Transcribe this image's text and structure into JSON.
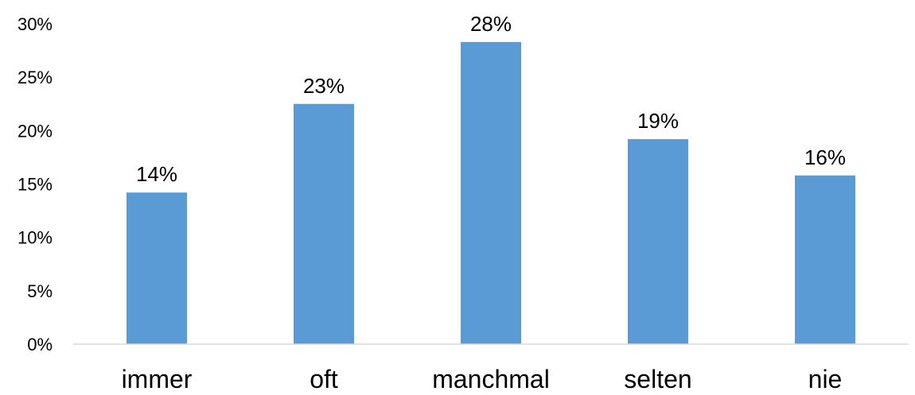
{
  "chart_data": {
    "type": "bar",
    "categories": [
      "immer",
      "oft",
      "manchmal",
      "selten",
      "nie"
    ],
    "values": [
      14.2,
      22.5,
      28.3,
      19.2,
      15.8
    ],
    "data_labels": [
      "14%",
      "23%",
      "28%",
      "19%",
      "16%"
    ],
    "yticks": [
      {
        "value": 0,
        "label": "0%"
      },
      {
        "value": 5,
        "label": "5%"
      },
      {
        "value": 10,
        "label": "10%"
      },
      {
        "value": 15,
        "label": "15%"
      },
      {
        "value": 20,
        "label": "20%"
      },
      {
        "value": 25,
        "label": "25%"
      },
      {
        "value": 30,
        "label": "30%"
      }
    ],
    "ylim": [
      0,
      30
    ],
    "title": "",
    "xlabel": "",
    "ylabel": "",
    "grid": false,
    "legend": false,
    "colors": {
      "bar": "#5b9bd5",
      "axis": "#d9d9d9",
      "text": "#000000"
    }
  }
}
